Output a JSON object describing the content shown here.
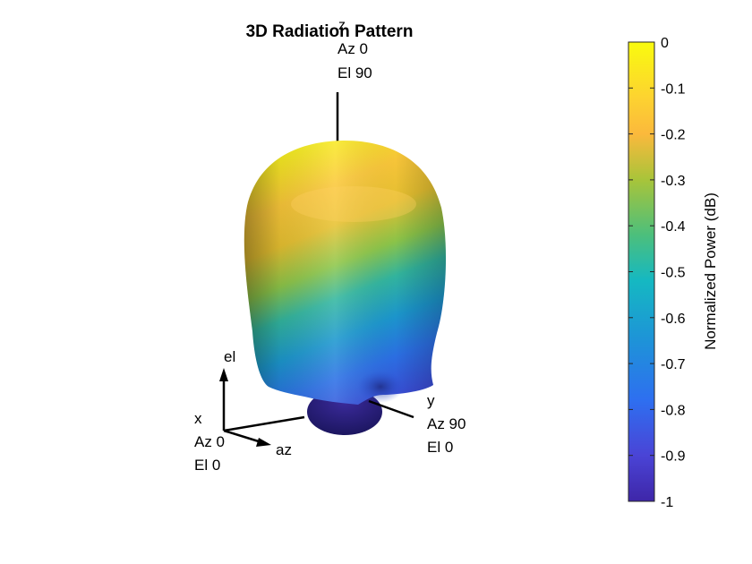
{
  "chart_data": {
    "type": "surface3d",
    "title": "3D Radiation Pattern",
    "axes": {
      "z": {
        "name": "z",
        "az": "Az 0",
        "el": "El 90"
      },
      "y": {
        "name": "y",
        "az": "Az 90",
        "el": "El 0"
      },
      "x": {
        "name": "x",
        "az": "Az 0",
        "el": "El 0"
      }
    },
    "triad": {
      "el_label": "el",
      "az_label": "az"
    },
    "colorbar": {
      "label": "Normalized Power (dB)",
      "ticks": [
        "0",
        "-0.1",
        "-0.2",
        "-0.3",
        "-0.4",
        "-0.5",
        "-0.6",
        "-0.7",
        "-0.8",
        "-0.9",
        "-1"
      ],
      "values": [
        0,
        -0.1,
        -0.2,
        -0.3,
        -0.4,
        -0.5,
        -0.6,
        -0.7,
        -0.8,
        -0.9,
        -1
      ],
      "range": [
        -1,
        0
      ],
      "colormap": "parula",
      "colors": [
        "#f9fb0e",
        "#fec229",
        "#a1ca39",
        "#21bcb2",
        "#1483d4",
        "#3e26a8"
      ]
    },
    "pattern": {
      "max_db": 0,
      "min_db": -1
    }
  }
}
